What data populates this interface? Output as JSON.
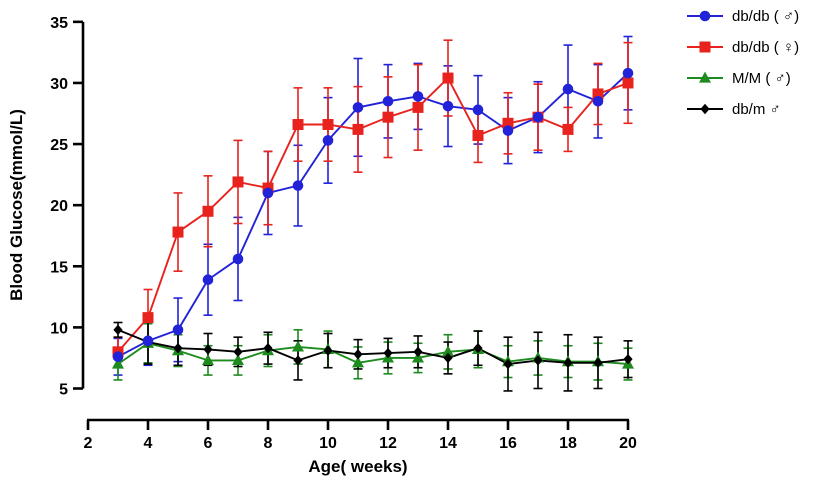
{
  "figure": {
    "background": "#ffffff"
  },
  "chart_data": {
    "type": "line",
    "title": "",
    "x_label": "Age( weeks)",
    "y_label": "Blood Glucose(mmol/L)",
    "x": [
      3,
      4,
      5,
      6,
      7,
      8,
      9,
      10,
      11,
      12,
      13,
      14,
      15,
      16,
      17,
      18,
      19,
      20
    ],
    "x_ticks": [
      2,
      4,
      6,
      8,
      10,
      12,
      14,
      16,
      18,
      20
    ],
    "y_ticks": [
      5,
      10,
      15,
      20,
      25,
      30,
      35
    ],
    "xlim": [
      2,
      20
    ],
    "ylim": [
      5,
      35
    ],
    "grid": false,
    "error_bars": true,
    "legend_position": "top-right",
    "axis_color": "#000000",
    "series": [
      {
        "name": "db/db ( ♂)",
        "slug": "db-db-male",
        "marker": "circle",
        "color": "#2222d9",
        "values": [
          7.6,
          8.9,
          9.8,
          13.9,
          15.6,
          21.0,
          21.6,
          25.3,
          28.0,
          28.5,
          28.9,
          28.1,
          27.8,
          26.1,
          27.2,
          29.5,
          28.5,
          30.8
        ],
        "errors": [
          1.5,
          2.0,
          2.6,
          2.9,
          3.4,
          3.4,
          3.3,
          3.5,
          4.0,
          3.0,
          2.7,
          3.3,
          2.8,
          2.7,
          2.9,
          3.6,
          3.0,
          3.0
        ]
      },
      {
        "name": "db/db ( ♀)",
        "slug": "db-db-female",
        "marker": "square",
        "color": "#e8231d",
        "values": [
          8.0,
          10.8,
          17.8,
          19.5,
          21.9,
          21.4,
          26.6,
          26.6,
          26.2,
          27.2,
          28.0,
          30.4,
          25.7,
          26.7,
          27.2,
          26.2,
          29.1,
          30.0
        ],
        "errors": [
          1.2,
          2.3,
          3.2,
          2.9,
          3.4,
          3.0,
          3.0,
          3.0,
          3.5,
          3.3,
          3.5,
          3.1,
          2.2,
          2.5,
          2.7,
          1.8,
          2.5,
          3.3
        ]
      },
      {
        "name": "M/M ( ♂)",
        "slug": "m-m-male",
        "marker": "triangle",
        "color": "#1e8b1e",
        "values": [
          7.0,
          8.7,
          8.1,
          7.3,
          7.3,
          8.1,
          8.4,
          8.2,
          7.1,
          7.5,
          7.5,
          8.0,
          8.2,
          7.2,
          7.5,
          7.2,
          7.2,
          7.0
        ],
        "errors": [
          1.3,
          1.6,
          1.3,
          1.2,
          1.2,
          1.3,
          1.4,
          1.5,
          1.3,
          1.3,
          1.2,
          1.4,
          1.5,
          1.3,
          1.4,
          1.3,
          1.5,
          1.3
        ]
      },
      {
        "name": "db/m ♂",
        "slug": "db-m-male",
        "marker": "diamond",
        "color": "#000000",
        "values": [
          9.8,
          8.8,
          8.3,
          8.2,
          8.0,
          8.3,
          7.3,
          8.1,
          7.8,
          7.9,
          8.0,
          7.5,
          8.3,
          7.0,
          7.3,
          7.1,
          7.1,
          7.4
        ],
        "errors": [
          0.6,
          1.8,
          1.4,
          1.3,
          1.2,
          1.3,
          1.6,
          1.4,
          1.2,
          1.2,
          1.3,
          1.3,
          1.4,
          2.2,
          2.3,
          2.3,
          2.1,
          1.5
        ]
      }
    ]
  }
}
